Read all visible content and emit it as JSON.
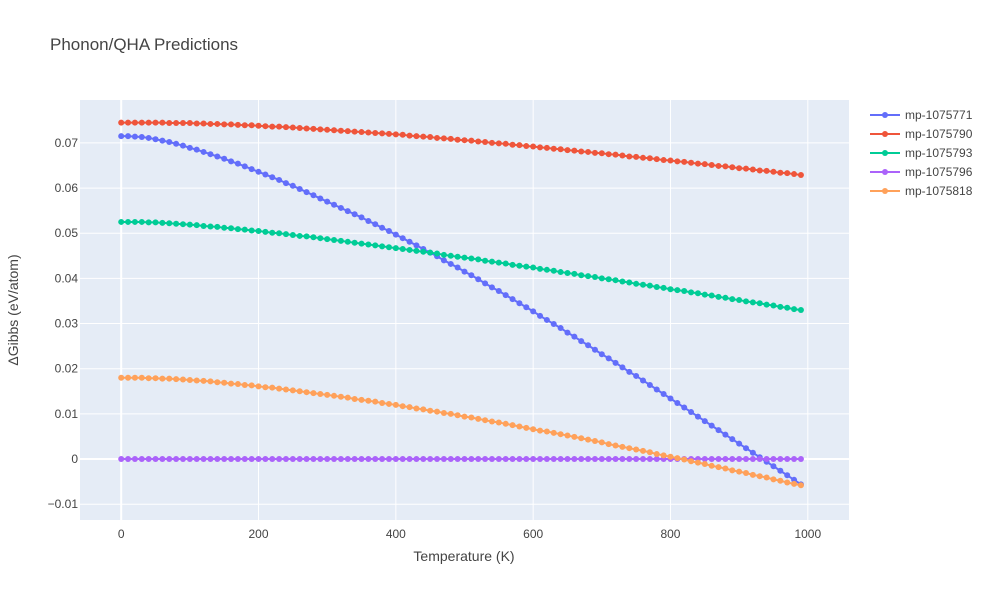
{
  "chart_data": {
    "type": "line",
    "title": "Phonon/QHA Predictions",
    "xlabel": "Temperature (K)",
    "ylabel": "ΔGibbs (eV/atom)",
    "xlim": [
      -60,
      1060
    ],
    "ylim": [
      -0.0135,
      0.0795
    ],
    "x_ticks": [
      0,
      200,
      400,
      600,
      800,
      1000
    ],
    "x_tick_labels": [
      "0",
      "200",
      "400",
      "600",
      "800",
      "1000"
    ],
    "y_ticks": [
      -0.01,
      0,
      0.01,
      0.02,
      0.03,
      0.04,
      0.05,
      0.06,
      0.07
    ],
    "y_tick_labels": [
      "−0.01",
      "0",
      "0.01",
      "0.02",
      "0.03",
      "0.04",
      "0.05",
      "0.06",
      "0.07"
    ],
    "grid": true,
    "legend_position": "top-right",
    "x": [
      0,
      10,
      20,
      30,
      40,
      50,
      60,
      70,
      80,
      90,
      100,
      110,
      120,
      130,
      140,
      150,
      160,
      170,
      180,
      190,
      200,
      210,
      220,
      230,
      240,
      250,
      260,
      270,
      280,
      290,
      300,
      310,
      320,
      330,
      340,
      350,
      360,
      370,
      380,
      390,
      400,
      410,
      420,
      430,
      440,
      450,
      460,
      470,
      480,
      490,
      500,
      510,
      520,
      530,
      540,
      550,
      560,
      570,
      580,
      590,
      600,
      610,
      620,
      630,
      640,
      650,
      660,
      670,
      680,
      690,
      700,
      710,
      720,
      730,
      740,
      750,
      760,
      770,
      780,
      790,
      800,
      810,
      820,
      830,
      840,
      850,
      860,
      870,
      880,
      890,
      900,
      910,
      920,
      930,
      940,
      950,
      960,
      970,
      980,
      990
    ],
    "series": [
      {
        "name": "mp-1075771",
        "color": "#636efa",
        "values": [
          0.0715,
          0.0715,
          0.0714,
          0.0713,
          0.0711,
          0.0708,
          0.0705,
          0.0702,
          0.0698,
          0.0694,
          0.0689,
          0.0685,
          0.068,
          0.0675,
          0.067,
          0.0665,
          0.0659,
          0.0654,
          0.0648,
          0.0642,
          0.0636,
          0.063,
          0.0624,
          0.0618,
          0.0611,
          0.0605,
          0.0598,
          0.0591,
          0.0584,
          0.0577,
          0.057,
          0.0563,
          0.0556,
          0.0549,
          0.0542,
          0.0535,
          0.0527,
          0.052,
          0.0512,
          0.0505,
          0.0497,
          0.0489,
          0.0481,
          0.0473,
          0.0465,
          0.0457,
          0.0449,
          0.044,
          0.0432,
          0.0424,
          0.0415,
          0.0407,
          0.0398,
          0.0389,
          0.038,
          0.0372,
          0.0363,
          0.0354,
          0.0345,
          0.0336,
          0.0327,
          0.0317,
          0.0308,
          0.0299,
          0.029,
          0.028,
          0.0271,
          0.0261,
          0.0252,
          0.0242,
          0.0232,
          0.0223,
          0.0213,
          0.0203,
          0.0193,
          0.0184,
          0.0174,
          0.0164,
          0.0154,
          0.0144,
          0.0134,
          0.0124,
          0.0114,
          0.0104,
          0.0094,
          0.0084,
          0.0074,
          0.0064,
          0.0054,
          0.0044,
          0.0034,
          0.0024,
          0.0014,
          0.0004,
          -0.0006,
          -0.0016,
          -0.0026,
          -0.0036,
          -0.0046,
          -0.0056
        ]
      },
      {
        "name": "mp-1075790",
        "color": "#ef553b",
        "values": [
          0.0745,
          0.0745,
          0.0745,
          0.0745,
          0.0745,
          0.0745,
          0.0745,
          0.0744,
          0.0744,
          0.0744,
          0.0744,
          0.0743,
          0.0743,
          0.0742,
          0.0742,
          0.0741,
          0.0741,
          0.074,
          0.0739,
          0.0739,
          0.0738,
          0.0737,
          0.0736,
          0.0736,
          0.0735,
          0.0734,
          0.0733,
          0.0732,
          0.0731,
          0.073,
          0.0729,
          0.0728,
          0.0727,
          0.0726,
          0.0725,
          0.0724,
          0.0723,
          0.0722,
          0.0721,
          0.072,
          0.0719,
          0.0718,
          0.0716,
          0.0715,
          0.0714,
          0.0713,
          0.0711,
          0.071,
          0.0709,
          0.0707,
          0.0706,
          0.0705,
          0.0703,
          0.0702,
          0.07,
          0.0699,
          0.0698,
          0.0696,
          0.0695,
          0.0693,
          0.0692,
          0.069,
          0.0689,
          0.0687,
          0.0686,
          0.0684,
          0.0683,
          0.0681,
          0.068,
          0.0678,
          0.0677,
          0.0675,
          0.0674,
          0.0672,
          0.067,
          0.0669,
          0.0667,
          0.0666,
          0.0664,
          0.0662,
          0.0661,
          0.0659,
          0.0658,
          0.0656,
          0.0654,
          0.0653,
          0.0651,
          0.0649,
          0.0648,
          0.0646,
          0.0644,
          0.0643,
          0.0641,
          0.0639,
          0.0638,
          0.0636,
          0.0634,
          0.0633,
          0.0631,
          0.0629
        ]
      },
      {
        "name": "mp-1075793",
        "color": "#00cc96",
        "values": [
          0.0525,
          0.0525,
          0.0525,
          0.0525,
          0.0524,
          0.0524,
          0.0523,
          0.0522,
          0.0521,
          0.052,
          0.0519,
          0.0518,
          0.0516,
          0.0515,
          0.0514,
          0.0512,
          0.0511,
          0.0509,
          0.0508,
          0.0506,
          0.0505,
          0.0503,
          0.0501,
          0.05,
          0.0498,
          0.0496,
          0.0494,
          0.0493,
          0.0491,
          0.0489,
          0.0487,
          0.0485,
          0.0483,
          0.0481,
          0.0479,
          0.0477,
          0.0475,
          0.0473,
          0.0471,
          0.0469,
          0.0467,
          0.0465,
          0.0463,
          0.0461,
          0.0459,
          0.0457,
          0.0455,
          0.0452,
          0.045,
          0.0448,
          0.0446,
          0.0444,
          0.0442,
          0.0439,
          0.0437,
          0.0435,
          0.0433,
          0.043,
          0.0428,
          0.0426,
          0.0424,
          0.0421,
          0.0419,
          0.0417,
          0.0414,
          0.0412,
          0.041,
          0.0407,
          0.0405,
          0.0403,
          0.04,
          0.0398,
          0.0396,
          0.0393,
          0.0391,
          0.0388,
          0.0386,
          0.0384,
          0.0381,
          0.0379,
          0.0376,
          0.0374,
          0.0372,
          0.0369,
          0.0367,
          0.0364,
          0.0362,
          0.0359,
          0.0357,
          0.0354,
          0.0352,
          0.0349,
          0.0347,
          0.0345,
          0.0342,
          0.034,
          0.0337,
          0.0335,
          0.0332,
          0.033
        ]
      },
      {
        "name": "mp-1075796",
        "color": "#ab63fa",
        "values": [
          0,
          0,
          0,
          0,
          0,
          0,
          0,
          0,
          0,
          0,
          0,
          0,
          0,
          0,
          0,
          0,
          0,
          0,
          0,
          0,
          0,
          0,
          0,
          0,
          0,
          0,
          0,
          0,
          0,
          0,
          0,
          0,
          0,
          0,
          0,
          0,
          0,
          0,
          0,
          0,
          0,
          0,
          0,
          0,
          0,
          0,
          0,
          0,
          0,
          0,
          0,
          0,
          0,
          0,
          0,
          0,
          0,
          0,
          0,
          0,
          0,
          0,
          0,
          0,
          0,
          0,
          0,
          0,
          0,
          0,
          0,
          0,
          0,
          0,
          0,
          0,
          0,
          0,
          0,
          0,
          0,
          0,
          0,
          0,
          0,
          0,
          0,
          0,
          0,
          0,
          0,
          0,
          0,
          0,
          0,
          0,
          0,
          0,
          0,
          0
        ]
      },
      {
        "name": "mp-1075818",
        "color": "#ffa15a",
        "values": [
          0.018,
          0.018,
          0.018,
          0.018,
          0.0179,
          0.0179,
          0.0178,
          0.0178,
          0.0177,
          0.0176,
          0.0175,
          0.0174,
          0.0173,
          0.0172,
          0.017,
          0.0169,
          0.0167,
          0.0166,
          0.0164,
          0.0163,
          0.0161,
          0.0159,
          0.0158,
          0.0156,
          0.0154,
          0.0152,
          0.015,
          0.0148,
          0.0146,
          0.0144,
          0.0142,
          0.014,
          0.0138,
          0.0136,
          0.0133,
          0.0131,
          0.0129,
          0.0127,
          0.0124,
          0.0122,
          0.012,
          0.0117,
          0.0115,
          0.0112,
          0.011,
          0.0107,
          0.0105,
          0.0102,
          0.01,
          0.0097,
          0.0094,
          0.0092,
          0.0089,
          0.0086,
          0.0083,
          0.0081,
          0.0078,
          0.0075,
          0.0072,
          0.0069,
          0.0066,
          0.0063,
          0.0061,
          0.0058,
          0.0055,
          0.0052,
          0.0049,
          0.0046,
          0.0043,
          0.004,
          0.0037,
          0.0033,
          0.003,
          0.0027,
          0.0024,
          0.0021,
          0.0018,
          0.0015,
          0.0011,
          0.0008,
          0.0005,
          0.0002,
          -0.0001,
          -0.0005,
          -0.0008,
          -0.0011,
          -0.0015,
          -0.0018,
          -0.0021,
          -0.0025,
          -0.0028,
          -0.0031,
          -0.0035,
          -0.0038,
          -0.0041,
          -0.0045,
          -0.0048,
          -0.0052,
          -0.0055,
          -0.0058
        ]
      }
    ]
  }
}
